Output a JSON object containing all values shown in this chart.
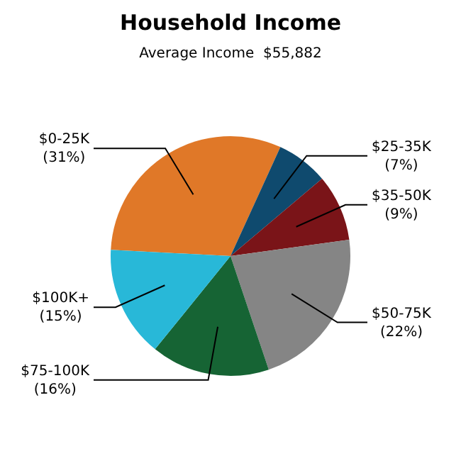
{
  "chart_data": {
    "type": "pie",
    "title": "Household Income",
    "subtitle": "Average Income  $55,882",
    "categories": [
      "$0-25K",
      "$25-35K",
      "$35-50K",
      "$50-75K",
      "$75-100K",
      "$100K+"
    ],
    "values": [
      31,
      7,
      9,
      22,
      16,
      15
    ],
    "colors": [
      "#e07828",
      "#0f4a6e",
      "#7a1418",
      "#858585",
      "#166434",
      "#28b8d8"
    ],
    "value_labels": [
      "(31%)",
      "(7%)",
      "(9%)",
      "(22%)",
      "(16%)",
      "(15%)"
    ],
    "legend": false
  }
}
